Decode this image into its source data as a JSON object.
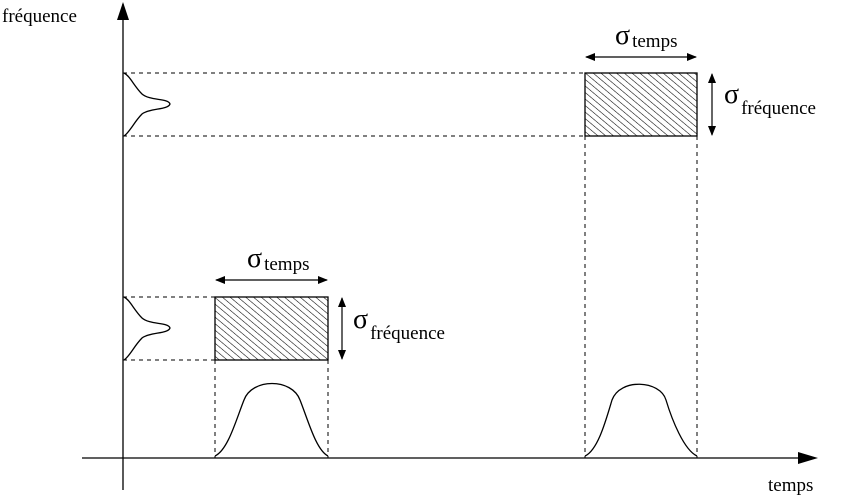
{
  "axes": {
    "y_label": "fréquence",
    "x_label": "temps"
  },
  "boxes": [
    {
      "sigma_symbol": "σ",
      "time_subscript": "temps",
      "freq_subscript": "fréquence"
    },
    {
      "sigma_symbol": "σ",
      "time_subscript": "temps",
      "freq_subscript": "fréquence"
    }
  ]
}
